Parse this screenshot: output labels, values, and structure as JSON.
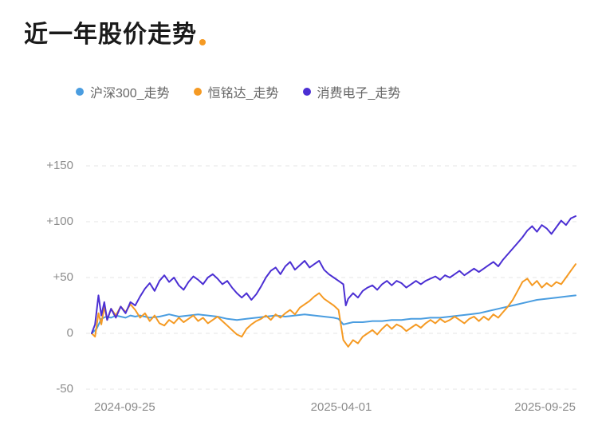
{
  "title": "近一年股价走势",
  "chart_data": {
    "type": "line",
    "title": "近一年股价走势",
    "x_unit": "percent-of-date-range (0 = 2024-09-25, 100 = 2025-09-25)",
    "xtick_labels": [
      "2024-09-25",
      "2025-04-01",
      "2025-09-25"
    ],
    "ytick_labels": [
      "+150",
      "+100",
      "+50",
      "0",
      "-50"
    ],
    "yticks": [
      150,
      100,
      50,
      0,
      -50
    ],
    "ylim": [
      -50,
      150
    ],
    "grid": "dashed-horizontal",
    "legend_position": "top",
    "series": [
      {
        "name": "沪深300_走势",
        "color": "#4a9de0",
        "points": [
          [
            0,
            0
          ],
          [
            1,
            4
          ],
          [
            2,
            13
          ],
          [
            3,
            15
          ],
          [
            4,
            14
          ],
          [
            5,
            16
          ],
          [
            6,
            15
          ],
          [
            7,
            14
          ],
          [
            8,
            16
          ],
          [
            9,
            15
          ],
          [
            10,
            16
          ],
          [
            12,
            14
          ],
          [
            14,
            15
          ],
          [
            16,
            17
          ],
          [
            18,
            15
          ],
          [
            20,
            16
          ],
          [
            22,
            17
          ],
          [
            24,
            16
          ],
          [
            26,
            15
          ],
          [
            28,
            13
          ],
          [
            30,
            12
          ],
          [
            32,
            13
          ],
          [
            34,
            14
          ],
          [
            36,
            15
          ],
          [
            38,
            16
          ],
          [
            40,
            15
          ],
          [
            42,
            16
          ],
          [
            44,
            17
          ],
          [
            46,
            16
          ],
          [
            48,
            15
          ],
          [
            50,
            14
          ],
          [
            51,
            13
          ],
          [
            52,
            8
          ],
          [
            53,
            9
          ],
          [
            54,
            10
          ],
          [
            56,
            10
          ],
          [
            58,
            11
          ],
          [
            60,
            11
          ],
          [
            62,
            12
          ],
          [
            64,
            12
          ],
          [
            66,
            13
          ],
          [
            68,
            13
          ],
          [
            70,
            14
          ],
          [
            72,
            14
          ],
          [
            74,
            15
          ],
          [
            76,
            16
          ],
          [
            78,
            17
          ],
          [
            80,
            18
          ],
          [
            82,
            20
          ],
          [
            84,
            22
          ],
          [
            86,
            24
          ],
          [
            88,
            26
          ],
          [
            90,
            28
          ],
          [
            92,
            30
          ],
          [
            94,
            31
          ],
          [
            96,
            32
          ],
          [
            98,
            33
          ],
          [
            100,
            34
          ]
        ]
      },
      {
        "name": "恒铭达_走势",
        "color": "#f59a23",
        "points": [
          [
            0,
            0
          ],
          [
            0.7,
            -3
          ],
          [
            1.4,
            18
          ],
          [
            2,
            8
          ],
          [
            2.6,
            24
          ],
          [
            3.2,
            12
          ],
          [
            4,
            22
          ],
          [
            5,
            16
          ],
          [
            6,
            24
          ],
          [
            7,
            19
          ],
          [
            8,
            26
          ],
          [
            9,
            21
          ],
          [
            10,
            14
          ],
          [
            11,
            18
          ],
          [
            12,
            11
          ],
          [
            13,
            16
          ],
          [
            14,
            9
          ],
          [
            15,
            7
          ],
          [
            16,
            12
          ],
          [
            17,
            9
          ],
          [
            18,
            14
          ],
          [
            19,
            10
          ],
          [
            20,
            13
          ],
          [
            21,
            16
          ],
          [
            22,
            11
          ],
          [
            23,
            14
          ],
          [
            24,
            9
          ],
          [
            25,
            12
          ],
          [
            26,
            15
          ],
          [
            27,
            11
          ],
          [
            28,
            7
          ],
          [
            29,
            3
          ],
          [
            30,
            -1
          ],
          [
            31,
            -3
          ],
          [
            32,
            4
          ],
          [
            33,
            8
          ],
          [
            34,
            11
          ],
          [
            35,
            13
          ],
          [
            36,
            16
          ],
          [
            37,
            12
          ],
          [
            38,
            17
          ],
          [
            39,
            14
          ],
          [
            40,
            18
          ],
          [
            41,
            21
          ],
          [
            42,
            17
          ],
          [
            43,
            23
          ],
          [
            44,
            26
          ],
          [
            45,
            29
          ],
          [
            46,
            33
          ],
          [
            47,
            36
          ],
          [
            48,
            31
          ],
          [
            49,
            28
          ],
          [
            50,
            25
          ],
          [
            51,
            21
          ],
          [
            52,
            -6
          ],
          [
            53,
            -12
          ],
          [
            54,
            -6
          ],
          [
            55,
            -9
          ],
          [
            56,
            -3
          ],
          [
            57,
            0
          ],
          [
            58,
            3
          ],
          [
            59,
            -1
          ],
          [
            60,
            4
          ],
          [
            61,
            8
          ],
          [
            62,
            4
          ],
          [
            63,
            8
          ],
          [
            64,
            6
          ],
          [
            65,
            2
          ],
          [
            66,
            5
          ],
          [
            67,
            8
          ],
          [
            68,
            5
          ],
          [
            69,
            9
          ],
          [
            70,
            12
          ],
          [
            71,
            9
          ],
          [
            72,
            13
          ],
          [
            73,
            10
          ],
          [
            74,
            12
          ],
          [
            75,
            15
          ],
          [
            76,
            12
          ],
          [
            77,
            9
          ],
          [
            78,
            13
          ],
          [
            79,
            15
          ],
          [
            80,
            11
          ],
          [
            81,
            15
          ],
          [
            82,
            12
          ],
          [
            83,
            17
          ],
          [
            84,
            14
          ],
          [
            85,
            19
          ],
          [
            86,
            24
          ],
          [
            87,
            30
          ],
          [
            88,
            38
          ],
          [
            89,
            46
          ],
          [
            90,
            49
          ],
          [
            91,
            43
          ],
          [
            92,
            47
          ],
          [
            93,
            41
          ],
          [
            94,
            45
          ],
          [
            95,
            42
          ],
          [
            96,
            46
          ],
          [
            97,
            44
          ],
          [
            98,
            50
          ],
          [
            99,
            56
          ],
          [
            100,
            62
          ]
        ]
      },
      {
        "name": "消费电子_走势",
        "color": "#4b2fd3",
        "points": [
          [
            0,
            0
          ],
          [
            0.7,
            8
          ],
          [
            1.4,
            34
          ],
          [
            2,
            16
          ],
          [
            2.6,
            28
          ],
          [
            3.2,
            12
          ],
          [
            4,
            22
          ],
          [
            5,
            14
          ],
          [
            6,
            24
          ],
          [
            7,
            18
          ],
          [
            8,
            28
          ],
          [
            9,
            25
          ],
          [
            10,
            33
          ],
          [
            11,
            40
          ],
          [
            12,
            45
          ],
          [
            13,
            38
          ],
          [
            14,
            47
          ],
          [
            15,
            52
          ],
          [
            16,
            46
          ],
          [
            17,
            50
          ],
          [
            18,
            43
          ],
          [
            19,
            39
          ],
          [
            20,
            46
          ],
          [
            21,
            51
          ],
          [
            22,
            48
          ],
          [
            23,
            44
          ],
          [
            24,
            50
          ],
          [
            25,
            53
          ],
          [
            26,
            49
          ],
          [
            27,
            44
          ],
          [
            28,
            47
          ],
          [
            29,
            41
          ],
          [
            30,
            36
          ],
          [
            31,
            32
          ],
          [
            32,
            36
          ],
          [
            33,
            30
          ],
          [
            34,
            35
          ],
          [
            35,
            42
          ],
          [
            36,
            50
          ],
          [
            37,
            56
          ],
          [
            38,
            59
          ],
          [
            39,
            53
          ],
          [
            40,
            60
          ],
          [
            41,
            64
          ],
          [
            42,
            57
          ],
          [
            43,
            61
          ],
          [
            44,
            65
          ],
          [
            45,
            59
          ],
          [
            46,
            62
          ],
          [
            47,
            65
          ],
          [
            48,
            57
          ],
          [
            49,
            53
          ],
          [
            50,
            50
          ],
          [
            51,
            47
          ],
          [
            52,
            44
          ],
          [
            52.5,
            25
          ],
          [
            53,
            31
          ],
          [
            54,
            36
          ],
          [
            55,
            32
          ],
          [
            56,
            38
          ],
          [
            57,
            41
          ],
          [
            58,
            43
          ],
          [
            59,
            39
          ],
          [
            60,
            44
          ],
          [
            61,
            47
          ],
          [
            62,
            43
          ],
          [
            63,
            47
          ],
          [
            64,
            45
          ],
          [
            65,
            41
          ],
          [
            66,
            44
          ],
          [
            67,
            47
          ],
          [
            68,
            44
          ],
          [
            69,
            47
          ],
          [
            70,
            49
          ],
          [
            71,
            51
          ],
          [
            72,
            48
          ],
          [
            73,
            52
          ],
          [
            74,
            50
          ],
          [
            75,
            53
          ],
          [
            76,
            56
          ],
          [
            77,
            52
          ],
          [
            78,
            55
          ],
          [
            79,
            58
          ],
          [
            80,
            55
          ],
          [
            81,
            58
          ],
          [
            82,
            61
          ],
          [
            83,
            64
          ],
          [
            84,
            60
          ],
          [
            85,
            66
          ],
          [
            86,
            71
          ],
          [
            87,
            76
          ],
          [
            88,
            81
          ],
          [
            89,
            86
          ],
          [
            90,
            92
          ],
          [
            91,
            96
          ],
          [
            92,
            91
          ],
          [
            93,
            97
          ],
          [
            94,
            94
          ],
          [
            95,
            89
          ],
          [
            96,
            95
          ],
          [
            97,
            101
          ],
          [
            98,
            97
          ],
          [
            99,
            103
          ],
          [
            100,
            105
          ]
        ]
      }
    ]
  }
}
